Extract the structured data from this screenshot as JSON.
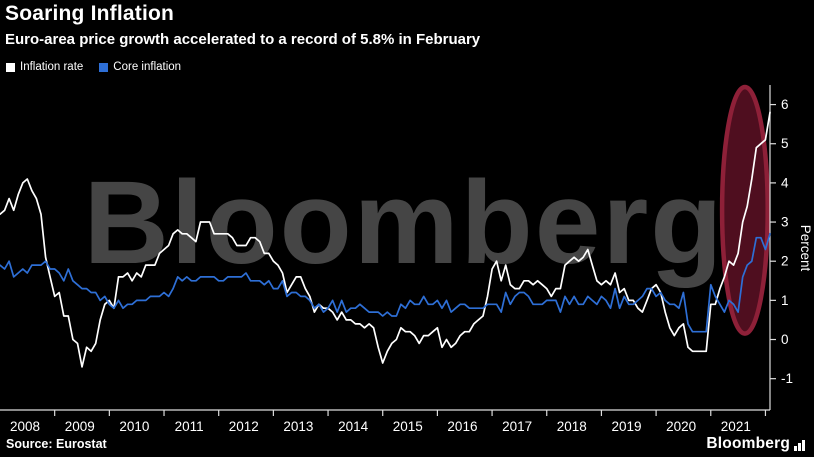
{
  "header": {
    "title": "Soaring Inflation",
    "subtitle": "Euro-area price growth accelerated to a record of 5.8% in February"
  },
  "legend": {
    "items": [
      {
        "label": "Inflation rate",
        "color": "#ffffff"
      },
      {
        "label": "Core inflation",
        "color": "#2e6fd6"
      }
    ]
  },
  "watermark": "Bloomberg",
  "footer": {
    "source": "Source: Eurostat",
    "brand": "Bloomberg"
  },
  "chart_data": {
    "type": "line",
    "title": "Soaring Inflation",
    "subtitle": "Euro-area price growth accelerated to a record of 5.8% in February",
    "ylabel": "Percent",
    "x_start": "2008-01",
    "x_end": "2022-02",
    "x_tick_label_years": [
      2008,
      2009,
      2010,
      2011,
      2012,
      2013,
      2014,
      2015,
      2016,
      2017,
      2018,
      2019,
      2020,
      2021
    ],
    "ylim": [
      -1.8,
      6.5
    ],
    "yticks": [
      -1,
      0,
      1,
      2,
      3,
      4,
      5,
      6
    ],
    "grid": false,
    "legend_position": "top-left",
    "axis_color": "#dddddd",
    "series": [
      {
        "name": "Inflation rate",
        "color": "#ffffff",
        "values": [
          3.2,
          3.3,
          3.6,
          3.3,
          3.7,
          4.0,
          4.1,
          3.8,
          3.6,
          3.2,
          2.1,
          1.6,
          1.1,
          1.2,
          0.6,
          0.6,
          0.0,
          -0.1,
          -0.7,
          -0.2,
          -0.3,
          -0.1,
          0.5,
          0.9,
          1.0,
          0.8,
          1.6,
          1.6,
          1.7,
          1.5,
          1.7,
          1.6,
          1.9,
          1.9,
          1.9,
          2.2,
          2.3,
          2.4,
          2.7,
          2.8,
          2.7,
          2.7,
          2.6,
          2.5,
          3.0,
          3.0,
          3.0,
          2.7,
          2.7,
          2.7,
          2.7,
          2.6,
          2.4,
          2.4,
          2.4,
          2.6,
          2.6,
          2.5,
          2.2,
          2.2,
          2.0,
          1.9,
          1.7,
          1.2,
          1.4,
          1.6,
          1.6,
          1.3,
          1.1,
          0.7,
          0.9,
          0.8,
          0.8,
          0.7,
          0.5,
          0.7,
          0.5,
          0.5,
          0.4,
          0.4,
          0.3,
          0.4,
          0.3,
          -0.2,
          -0.6,
          -0.3,
          -0.1,
          0.0,
          0.3,
          0.2,
          0.2,
          0.1,
          -0.1,
          0.1,
          0.1,
          0.2,
          0.3,
          -0.2,
          0.0,
          -0.2,
          -0.1,
          0.1,
          0.2,
          0.2,
          0.4,
          0.5,
          0.6,
          1.1,
          1.8,
          2.0,
          1.5,
          1.9,
          1.4,
          1.3,
          1.3,
          1.5,
          1.5,
          1.4,
          1.5,
          1.4,
          1.3,
          1.1,
          1.3,
          1.3,
          1.9,
          2.0,
          2.1,
          2.0,
          2.1,
          2.3,
          1.9,
          1.5,
          1.4,
          1.5,
          1.4,
          1.7,
          1.2,
          1.3,
          1.0,
          1.0,
          0.8,
          0.7,
          1.0,
          1.3,
          1.4,
          1.2,
          0.7,
          0.3,
          0.1,
          0.3,
          0.4,
          -0.2,
          -0.3,
          -0.3,
          -0.3,
          -0.3,
          0.9,
          0.9,
          1.3,
          1.6,
          2.0,
          1.9,
          2.2,
          3.0,
          3.4,
          4.1,
          4.9,
          5.0,
          5.1,
          5.8
        ]
      },
      {
        "name": "Core inflation",
        "color": "#2e6fd6",
        "values": [
          1.9,
          1.8,
          2.0,
          1.6,
          1.7,
          1.8,
          1.7,
          1.9,
          1.9,
          1.9,
          2.0,
          1.8,
          1.8,
          1.7,
          1.5,
          1.8,
          1.5,
          1.4,
          1.3,
          1.3,
          1.2,
          1.2,
          1.0,
          1.1,
          0.9,
          0.8,
          1.0,
          0.8,
          0.9,
          0.9,
          1.0,
          1.0,
          1.0,
          1.1,
          1.1,
          1.1,
          1.2,
          1.1,
          1.3,
          1.6,
          1.5,
          1.6,
          1.5,
          1.5,
          1.6,
          1.6,
          1.6,
          1.6,
          1.5,
          1.5,
          1.6,
          1.6,
          1.6,
          1.6,
          1.7,
          1.5,
          1.5,
          1.5,
          1.4,
          1.5,
          1.3,
          1.3,
          1.5,
          1.1,
          1.2,
          1.2,
          1.1,
          1.1,
          1.0,
          0.8,
          0.9,
          0.7,
          0.8,
          1.0,
          0.7,
          1.0,
          0.7,
          0.8,
          0.8,
          0.9,
          0.8,
          0.7,
          0.7,
          0.7,
          0.6,
          0.7,
          0.6,
          0.6,
          0.9,
          0.8,
          1.0,
          0.9,
          0.9,
          1.1,
          0.9,
          0.9,
          1.0,
          0.8,
          1.0,
          0.7,
          0.8,
          0.9,
          0.9,
          0.8,
          0.8,
          0.8,
          0.8,
          0.9,
          0.9,
          0.9,
          0.7,
          1.2,
          0.9,
          1.1,
          1.2,
          1.2,
          1.1,
          0.9,
          0.9,
          0.9,
          1.0,
          1.0,
          1.0,
          0.7,
          1.1,
          0.9,
          1.1,
          0.9,
          0.9,
          1.1,
          1.0,
          0.9,
          1.1,
          1.0,
          0.8,
          1.3,
          0.8,
          1.1,
          0.9,
          0.9,
          1.0,
          1.1,
          1.3,
          1.3,
          1.1,
          1.2,
          1.0,
          0.9,
          0.9,
          0.8,
          1.2,
          0.4,
          0.2,
          0.2,
          0.2,
          0.2,
          1.4,
          1.1,
          0.9,
          0.7,
          1.0,
          0.9,
          0.7,
          1.6,
          1.9,
          2.0,
          2.6,
          2.6,
          2.3,
          2.7
        ]
      }
    ],
    "annotation": {
      "shape": "ellipse",
      "center_month_index": 163.5,
      "center_value": 3.3,
      "rx_months": 5,
      "ry_value": 3.15,
      "fill": "#4f0e1f",
      "stroke": "#8e2038"
    }
  }
}
